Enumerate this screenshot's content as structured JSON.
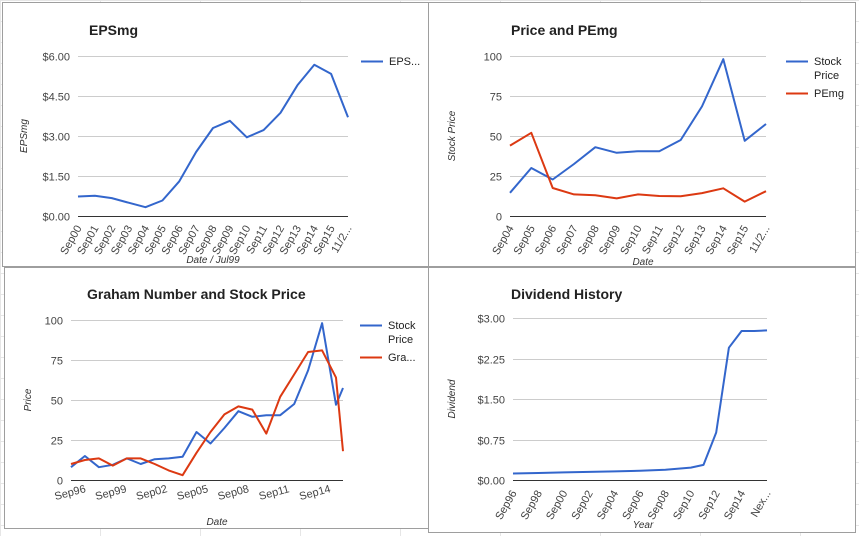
{
  "chart_data": [
    {
      "type": "line",
      "title": "EPSmg",
      "xlabel": "Date / Jul99",
      "ylabel": "EPSmg",
      "ylim": [
        0,
        6
      ],
      "yticks": [
        0,
        1.5,
        3,
        4.5,
        6
      ],
      "ytick_labels": [
        "$0.00",
        "$1.50",
        "$3.00",
        "$4.50",
        "$6.00"
      ],
      "categories": [
        "Sep00",
        "Sep01",
        "Sep02",
        "Sep03",
        "Sep04",
        "Sep05",
        "Sep06",
        "Sep07",
        "Sep08",
        "Sep09",
        "Sep10",
        "Sep11",
        "Sep12",
        "Sep13",
        "Sep14",
        "Sep15",
        "11/2..."
      ],
      "series": [
        {
          "name": "EPS...",
          "color": "#3366cc",
          "x": [
            0,
            1,
            2,
            3,
            4,
            5,
            6,
            7,
            8,
            9,
            10,
            11,
            12,
            13,
            14,
            15,
            16
          ],
          "values": [
            0.73,
            0.76,
            0.67,
            0.5,
            0.33,
            0.58,
            1.3,
            2.4,
            3.3,
            3.57,
            2.95,
            3.22,
            3.87,
            4.9,
            5.67,
            5.33,
            3.7
          ]
        }
      ],
      "legend": "right",
      "grid": true
    },
    {
      "type": "line",
      "title": "Price and PEmg",
      "xlabel": "Date",
      "ylabel": "Stock Price",
      "ylim": [
        0,
        100
      ],
      "yticks": [
        0,
        25,
        50,
        75,
        100
      ],
      "ytick_labels": [
        "0",
        "25",
        "50",
        "75",
        "100"
      ],
      "categories": [
        "Sep04",
        "Sep05",
        "Sep06",
        "Sep07",
        "Sep08",
        "Sep09",
        "Sep10",
        "Sep11",
        "Sep12",
        "Sep13",
        "Sep14",
        "Sep15",
        "11/2..."
      ],
      "series": [
        {
          "name": "Stock Price",
          "color": "#3366cc",
          "x": [
            0,
            1,
            2,
            3,
            4,
            5,
            6,
            7,
            8,
            9,
            10,
            11,
            12
          ],
          "values": [
            14.5,
            30,
            22.8,
            32.5,
            43,
            39.5,
            40.5,
            40.5,
            47.5,
            68.5,
            98,
            47,
            57.5
          ]
        },
        {
          "name": "PEmg",
          "color": "#dc3912",
          "x": [
            0,
            1,
            2,
            3,
            4,
            5,
            6,
            7,
            8,
            9,
            10,
            11,
            12
          ],
          "values": [
            44,
            52,
            17.5,
            13.5,
            13,
            11,
            13.5,
            12.5,
            12.3,
            14.3,
            17.3,
            9,
            15.5
          ]
        }
      ],
      "legend": "right",
      "grid": true
    },
    {
      "type": "line",
      "title": "Graham Number and Stock Price",
      "xlabel": "Date",
      "ylabel": "Price",
      "ylim": [
        0,
        100
      ],
      "yticks": [
        0,
        25,
        50,
        75,
        100
      ],
      "ytick_labels": [
        "0",
        "25",
        "50",
        "75",
        "100"
      ],
      "categories": [
        "Sep96",
        "Sep99",
        "Sep02",
        "Sep05",
        "Sep08",
        "Sep11",
        "Sep14"
      ],
      "xlim": [
        0,
        19.5
      ],
      "series": [
        {
          "name": "Stock Price",
          "color": "#3366cc",
          "x": [
            0,
            1,
            2,
            3,
            4,
            5,
            6,
            7,
            8,
            9,
            10,
            11,
            12,
            13,
            14,
            15,
            16,
            17,
            18,
            19,
            19.5
          ],
          "values": [
            8,
            15,
            8,
            9.5,
            13.5,
            10,
            13,
            13.5,
            14.5,
            30,
            22.8,
            32.5,
            43,
            39.5,
            40.5,
            40.5,
            47.5,
            68.5,
            98,
            47,
            57.5
          ]
        },
        {
          "name": "Gra...",
          "color": "#dc3912",
          "x": [
            0,
            1,
            2,
            3,
            4,
            5,
            6,
            7,
            8,
            9,
            10,
            11,
            12,
            13,
            14,
            15,
            16,
            17,
            18,
            19,
            19.5
          ],
          "values": [
            10,
            12.5,
            13.5,
            9,
            13.5,
            13.5,
            10,
            6,
            3,
            17,
            30,
            41,
            46,
            44,
            29,
            52,
            66,
            80,
            81,
            64,
            18
          ]
        }
      ],
      "legend": "right",
      "grid": true
    },
    {
      "type": "line",
      "title": "Dividend History",
      "xlabel": "Year",
      "ylabel": "Dividend",
      "ylim": [
        0,
        3
      ],
      "yticks": [
        0,
        0.75,
        1.5,
        2.25,
        3
      ],
      "ytick_labels": [
        "$0.00",
        "$0.75",
        "$1.50",
        "$2.25",
        "$3.00"
      ],
      "categories": [
        "Sep96",
        "Sep98",
        "Sep00",
        "Sep02",
        "Sep04",
        "Sep06",
        "Sep08",
        "Sep10",
        "Sep12",
        "Sep14",
        "Nex..."
      ],
      "xlim": [
        0,
        20
      ],
      "series": [
        {
          "name": "Dividend",
          "color": "#3366cc",
          "x": [
            0,
            2,
            4,
            6,
            8,
            10,
            12,
            14,
            15,
            16,
            17,
            18,
            19,
            20
          ],
          "values": [
            0.12,
            0.13,
            0.14,
            0.15,
            0.16,
            0.17,
            0.19,
            0.23,
            0.28,
            0.88,
            2.45,
            2.76,
            2.76,
            2.77
          ]
        }
      ],
      "legend": "none",
      "grid": true
    }
  ]
}
